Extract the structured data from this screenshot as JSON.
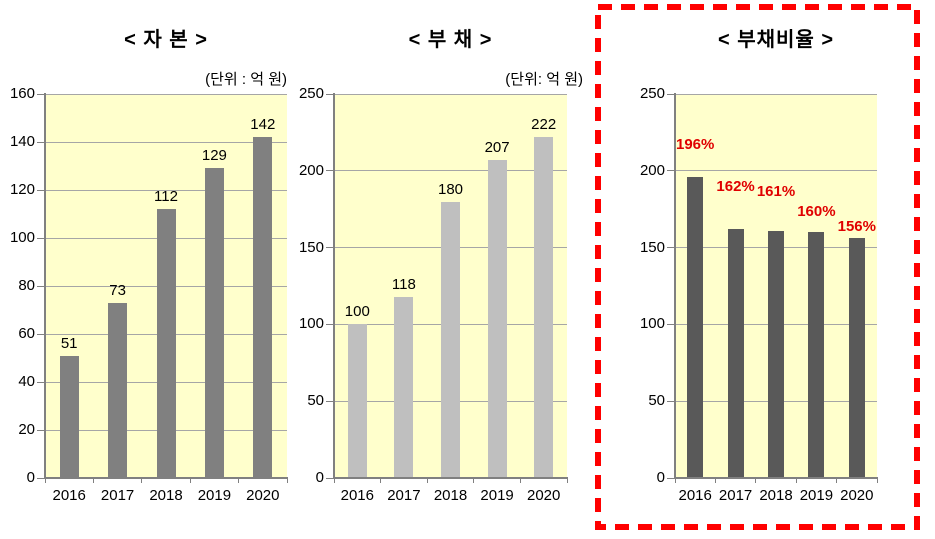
{
  "figure": {
    "background": "#FFFFFF",
    "highlight_box_color": "#FF0000"
  },
  "chart_data": [
    {
      "type": "bar",
      "title": "< 자 본 >",
      "unit": "(단위 : 억 원)",
      "categories": [
        "2016",
        "2017",
        "2018",
        "2019",
        "2020"
      ],
      "values": [
        51,
        73,
        112,
        129,
        142
      ],
      "value_labels": [
        "51",
        "73",
        "112",
        "129",
        "142"
      ],
      "ylim": [
        0,
        160
      ],
      "ytick_step": 20,
      "ytick_labels": [
        "0",
        "20",
        "40",
        "60",
        "80",
        "100",
        "120",
        "140",
        "160"
      ],
      "grid": true,
      "legend": "none",
      "plot_bg": "#FFFFCC",
      "bar_color": "#808080",
      "label_color": "#000000",
      "label_bold": false,
      "highlight_box": false
    },
    {
      "type": "bar",
      "title": "< 부 채 >",
      "unit": "(단위: 억 원)",
      "categories": [
        "2016",
        "2017",
        "2018",
        "2019",
        "2020"
      ],
      "values": [
        100,
        118,
        180,
        207,
        222
      ],
      "value_labels": [
        "100",
        "118",
        "180",
        "207",
        "222"
      ],
      "ylim": [
        0,
        250
      ],
      "ytick_step": 50,
      "ytick_labels": [
        "0",
        "50",
        "100",
        "150",
        "200",
        "250"
      ],
      "grid": true,
      "legend": "none",
      "plot_bg": "#FFFFCC",
      "bar_color": "#BFBFBF",
      "label_color": "#000000",
      "label_bold": false,
      "highlight_box": false
    },
    {
      "type": "bar",
      "title": "< 부채비율 >",
      "unit": "",
      "categories": [
        "2016",
        "2017",
        "2018",
        "2019",
        "2020"
      ],
      "values": [
        196,
        162,
        161,
        160,
        156
      ],
      "value_labels": [
        "196%",
        "162%",
        "161%",
        "160%",
        "156%"
      ],
      "ylim": [
        0,
        250
      ],
      "ytick_step": 50,
      "ytick_labels": [
        "0",
        "50",
        "100",
        "150",
        "200",
        "250"
      ],
      "grid": true,
      "legend": "none",
      "plot_bg": "#FFFFCC",
      "bar_color": "#595959",
      "label_color": "#E00000",
      "label_bold": true,
      "highlight_box": true
    }
  ],
  "style_colors": {
    "gridline": "#A6A6A6",
    "axis": "#808080",
    "text": "#000000"
  }
}
